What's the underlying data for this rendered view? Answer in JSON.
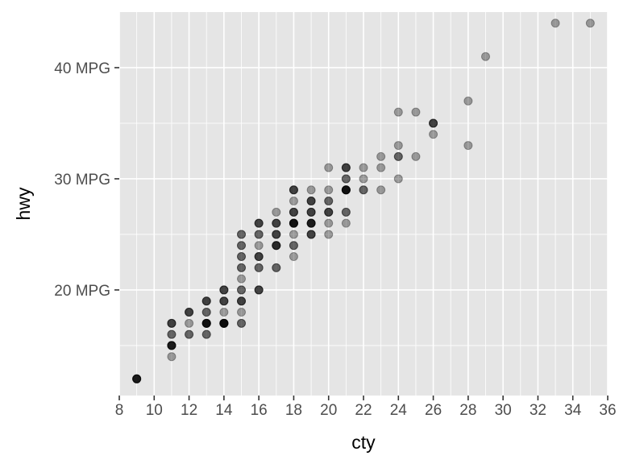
{
  "chart_data": {
    "type": "scatter",
    "xlabel": "cty",
    "ylabel": "hwy",
    "xlim": [
      8,
      36
    ],
    "ylim": [
      10.5,
      45
    ],
    "x_ticks": [
      8,
      10,
      12,
      14,
      16,
      18,
      20,
      22,
      24,
      26,
      28,
      30,
      32,
      34,
      36
    ],
    "x_tick_labels": [
      "8",
      "10",
      "12",
      "14",
      "16",
      "18",
      "20",
      "22",
      "24",
      "26",
      "28",
      "30",
      "32",
      "34",
      "36"
    ],
    "y_ticks": [
      20,
      30,
      40
    ],
    "y_tick_labels": [
      "20 MPG",
      "30 MPG",
      "40 MPG"
    ],
    "y_minor_gridlines": [
      15,
      25,
      35
    ],
    "grid": true,
    "point_color": "#000000",
    "point_alpha": 0.35,
    "panel_background": "#e5e5e5",
    "gridline_color": "#ffffff",
    "series": [
      {
        "points": [
          [
            9,
            12
          ],
          [
            9,
            12
          ],
          [
            9,
            12
          ],
          [
            9,
            12
          ],
          [
            9,
            12
          ],
          [
            11,
            14
          ],
          [
            11,
            15
          ],
          [
            11,
            15
          ],
          [
            11,
            15
          ],
          [
            11,
            15
          ],
          [
            11,
            15
          ],
          [
            11,
            16
          ],
          [
            11,
            16
          ],
          [
            11,
            17
          ],
          [
            11,
            17
          ],
          [
            11,
            17
          ],
          [
            12,
            16
          ],
          [
            12,
            16
          ],
          [
            12,
            17
          ],
          [
            12,
            18
          ],
          [
            12,
            18
          ],
          [
            12,
            18
          ],
          [
            13,
            16
          ],
          [
            13,
            16
          ],
          [
            13,
            17
          ],
          [
            13,
            17
          ],
          [
            13,
            17
          ],
          [
            13,
            17
          ],
          [
            13,
            17
          ],
          [
            13,
            17
          ],
          [
            13,
            18
          ],
          [
            13,
            18
          ],
          [
            13,
            19
          ],
          [
            13,
            19
          ],
          [
            13,
            19
          ],
          [
            14,
            17
          ],
          [
            14,
            17
          ],
          [
            14,
            17
          ],
          [
            14,
            17
          ],
          [
            14,
            17
          ],
          [
            14,
            17
          ],
          [
            14,
            17
          ],
          [
            14,
            18
          ],
          [
            14,
            19
          ],
          [
            14,
            19
          ],
          [
            14,
            19
          ],
          [
            14,
            20
          ],
          [
            14,
            20
          ],
          [
            14,
            20
          ],
          [
            15,
            17
          ],
          [
            15,
            17
          ],
          [
            15,
            18
          ],
          [
            15,
            19
          ],
          [
            15,
            19
          ],
          [
            15,
            19
          ],
          [
            15,
            20
          ],
          [
            15,
            20
          ],
          [
            15,
            21
          ],
          [
            15,
            22
          ],
          [
            15,
            22
          ],
          [
            15,
            23
          ],
          [
            15,
            23
          ],
          [
            15,
            24
          ],
          [
            15,
            24
          ],
          [
            15,
            25
          ],
          [
            15,
            25
          ],
          [
            16,
            20
          ],
          [
            16,
            20
          ],
          [
            16,
            20
          ],
          [
            16,
            22
          ],
          [
            16,
            22
          ],
          [
            16,
            23
          ],
          [
            16,
            23
          ],
          [
            16,
            23
          ],
          [
            16,
            24
          ],
          [
            16,
            25
          ],
          [
            16,
            25
          ],
          [
            16,
            26
          ],
          [
            16,
            26
          ],
          [
            16,
            26
          ],
          [
            17,
            22
          ],
          [
            17,
            22
          ],
          [
            17,
            24
          ],
          [
            17,
            24
          ],
          [
            17,
            24
          ],
          [
            17,
            24
          ],
          [
            17,
            25
          ],
          [
            17,
            25
          ],
          [
            17,
            25
          ],
          [
            17,
            26
          ],
          [
            17,
            26
          ],
          [
            17,
            26
          ],
          [
            17,
            27
          ],
          [
            18,
            23
          ],
          [
            18,
            24
          ],
          [
            18,
            24
          ],
          [
            18,
            25
          ],
          [
            18,
            26
          ],
          [
            18,
            26
          ],
          [
            18,
            26
          ],
          [
            18,
            26
          ],
          [
            18,
            26
          ],
          [
            18,
            26
          ],
          [
            18,
            27
          ],
          [
            18,
            27
          ],
          [
            18,
            27
          ],
          [
            18,
            28
          ],
          [
            18,
            29
          ],
          [
            18,
            29
          ],
          [
            18,
            29
          ],
          [
            19,
            25
          ],
          [
            19,
            25
          ],
          [
            19,
            25
          ],
          [
            19,
            26
          ],
          [
            19,
            26
          ],
          [
            19,
            26
          ],
          [
            19,
            26
          ],
          [
            19,
            26
          ],
          [
            19,
            27
          ],
          [
            19,
            27
          ],
          [
            19,
            27
          ],
          [
            19,
            28
          ],
          [
            19,
            28
          ],
          [
            19,
            28
          ],
          [
            19,
            29
          ],
          [
            20,
            25
          ],
          [
            20,
            26
          ],
          [
            20,
            27
          ],
          [
            20,
            27
          ],
          [
            20,
            27
          ],
          [
            20,
            28
          ],
          [
            20,
            28
          ],
          [
            20,
            29
          ],
          [
            20,
            31
          ],
          [
            21,
            26
          ],
          [
            21,
            27
          ],
          [
            21,
            27
          ],
          [
            21,
            29
          ],
          [
            21,
            29
          ],
          [
            21,
            29
          ],
          [
            21,
            29
          ],
          [
            21,
            29
          ],
          [
            21,
            29
          ],
          [
            21,
            30
          ],
          [
            21,
            30
          ],
          [
            21,
            31
          ],
          [
            21,
            31
          ],
          [
            21,
            31
          ],
          [
            22,
            29
          ],
          [
            22,
            29
          ],
          [
            22,
            30
          ],
          [
            22,
            31
          ],
          [
            23,
            29
          ],
          [
            23,
            31
          ],
          [
            23,
            32
          ],
          [
            24,
            30
          ],
          [
            24,
            32
          ],
          [
            24,
            32
          ],
          [
            24,
            33
          ],
          [
            24,
            36
          ],
          [
            25,
            32
          ],
          [
            25,
            36
          ],
          [
            26,
            34
          ],
          [
            26,
            35
          ],
          [
            26,
            35
          ],
          [
            26,
            35
          ],
          [
            28,
            33
          ],
          [
            28,
            37
          ],
          [
            29,
            41
          ],
          [
            33,
            44
          ],
          [
            35,
            44
          ]
        ]
      }
    ]
  }
}
